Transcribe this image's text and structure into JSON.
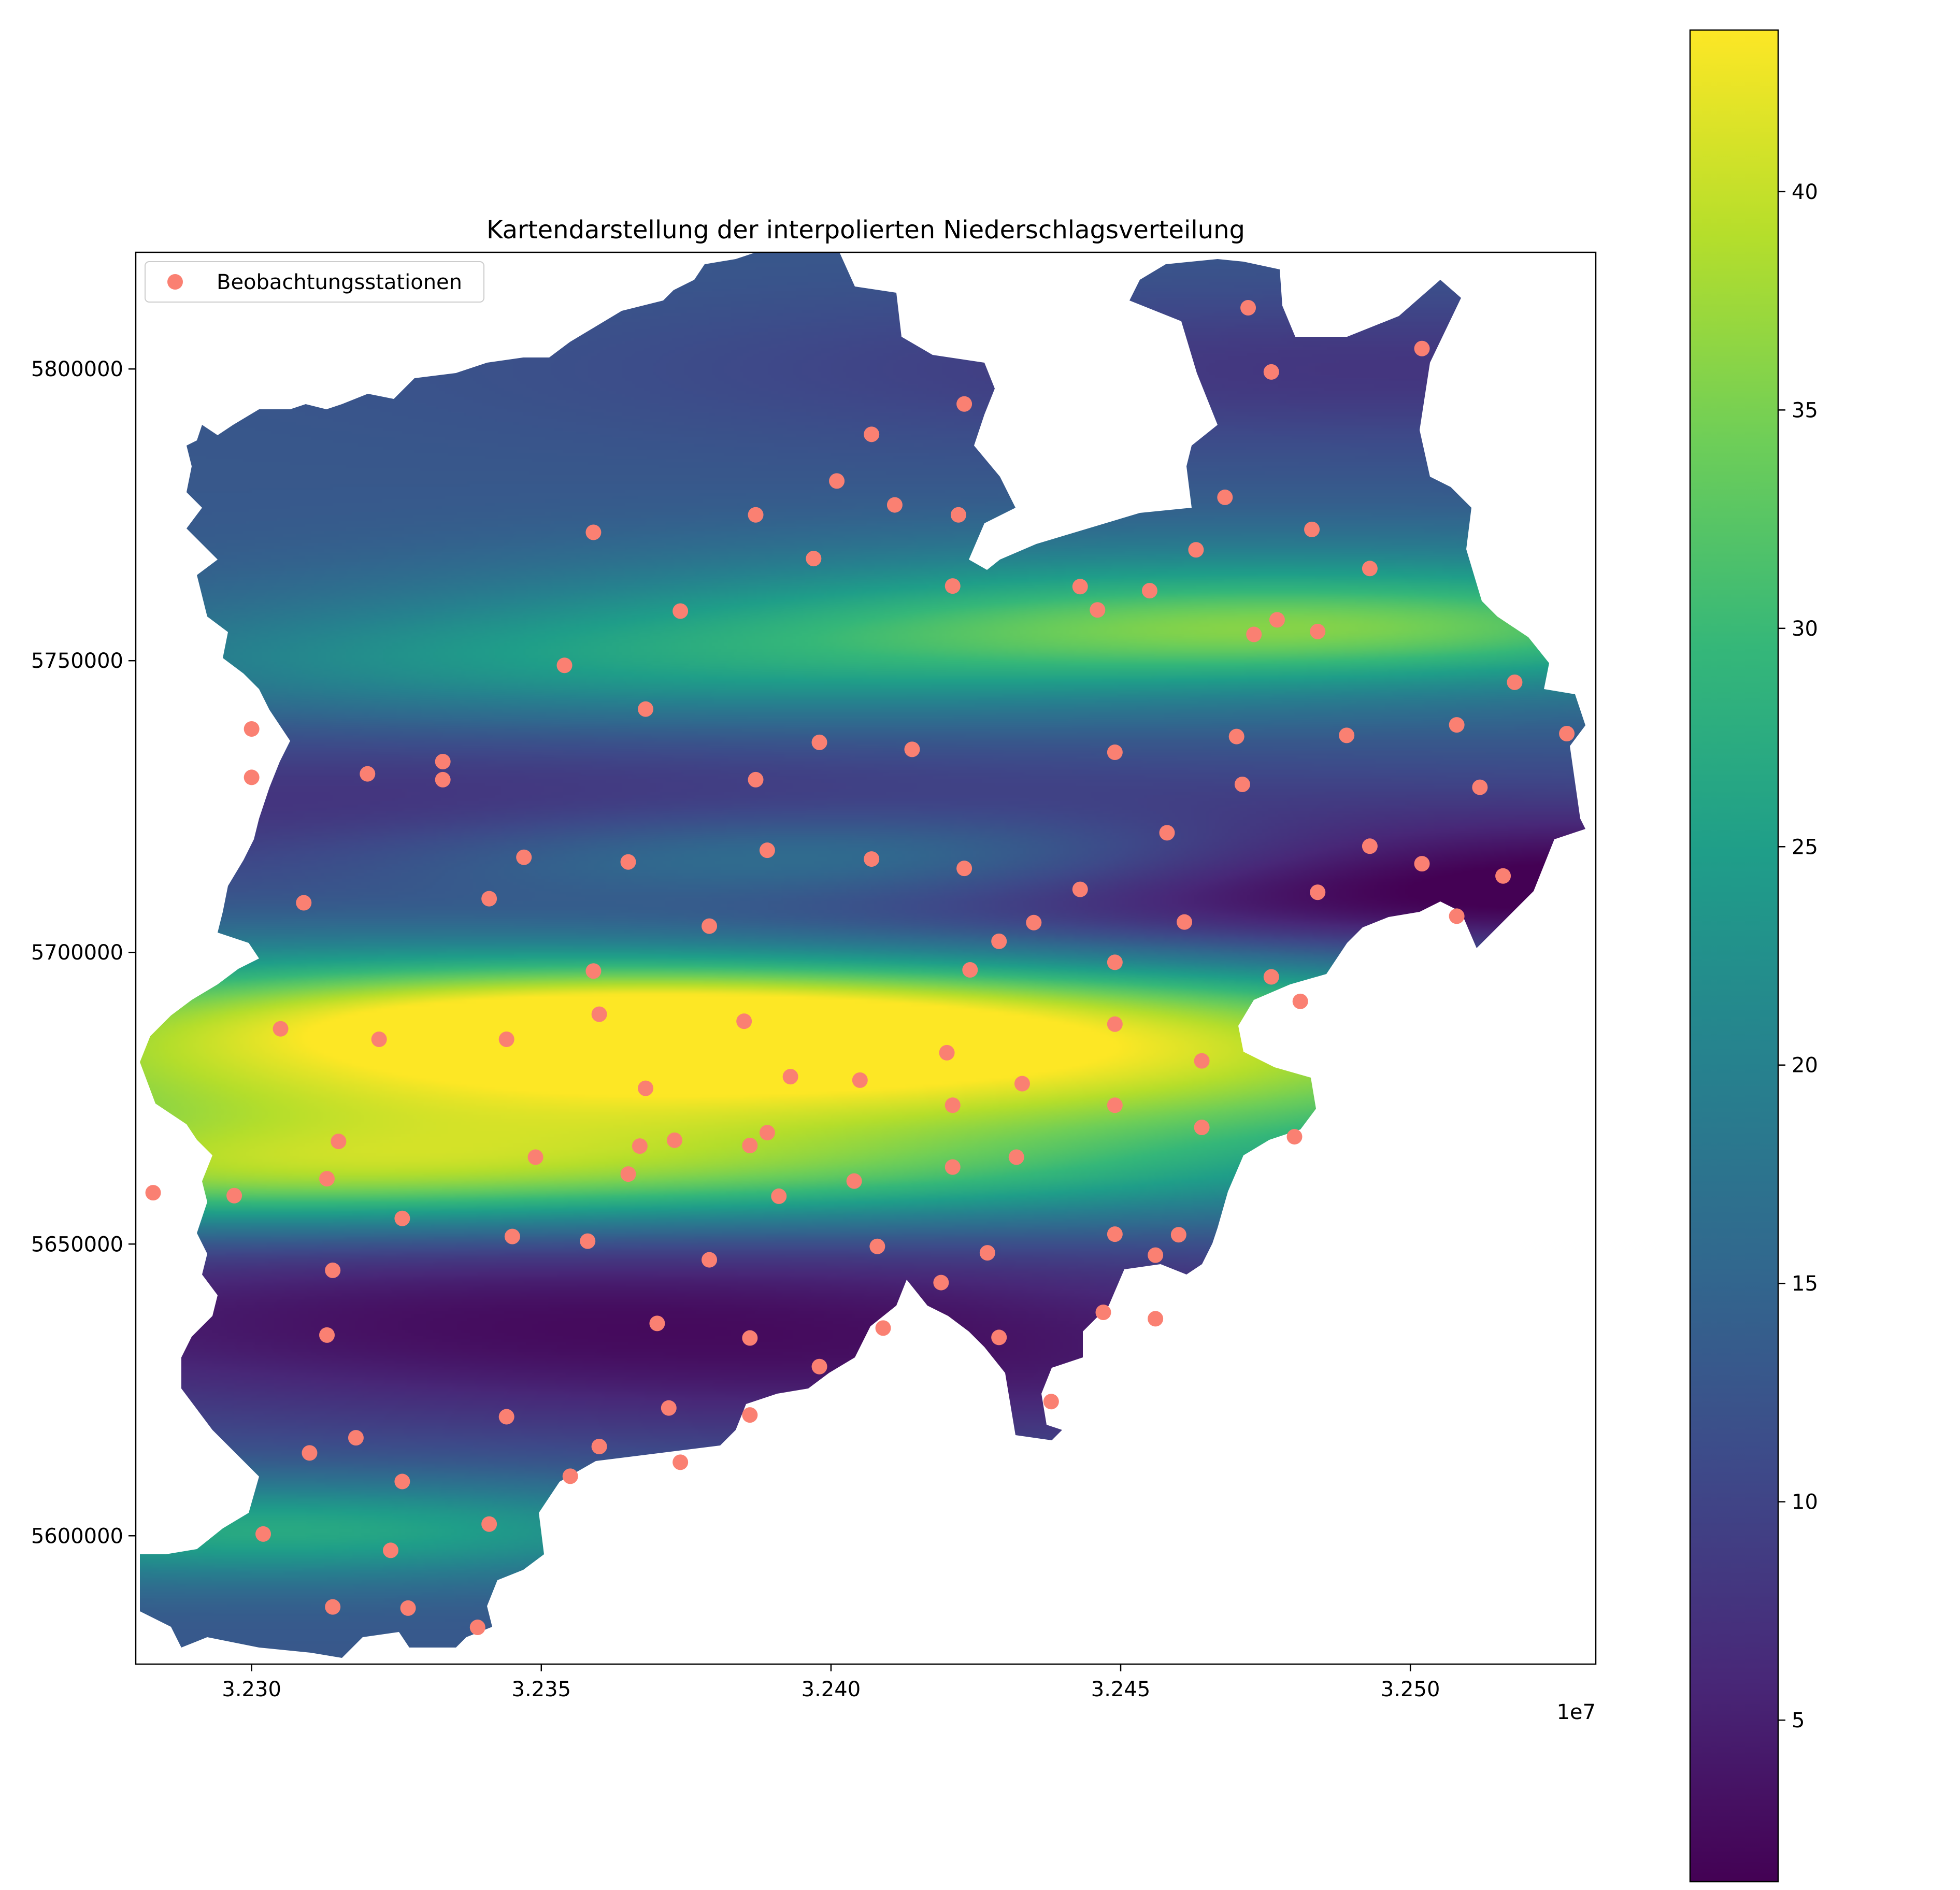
{
  "chart_data": {
    "type": "scatter",
    "title": "Kartendarstellung der interpolierten Niederschlagsverteilung",
    "x_ticks": [
      "3.230",
      "3.235",
      "3.240",
      "3.245",
      "3.250"
    ],
    "x_tick_values": [
      3230000,
      3235000,
      3240000,
      3245000,
      3250000
    ],
    "x_offset_label": "1e7",
    "y_ticks": [
      "5600000",
      "5650000",
      "5700000",
      "5750000",
      "5800000"
    ],
    "y_tick_values": [
      5600000,
      5650000,
      5700000,
      5750000,
      5800000
    ],
    "xlim": [
      3228000,
      3253200
    ],
    "ylim": [
      5578000,
      5820000
    ],
    "colorbar": {
      "colormap": "viridis",
      "range": [
        1.3,
        43.7
      ],
      "ticks": [
        "5",
        "10",
        "15",
        "20",
        "25",
        "30",
        "35",
        "40"
      ],
      "tick_values": [
        5,
        10,
        15,
        20,
        25,
        30,
        35,
        40
      ]
    },
    "legend": {
      "label": "Beobachtungsstationen",
      "location": "upper-left",
      "marker_color": "#fa8072"
    },
    "stations": [
      [
        3247200,
        5810500
      ],
      [
        3247600,
        5799500
      ],
      [
        3250200,
        5803500
      ],
      [
        3242300,
        5794000
      ],
      [
        3240700,
        5788800
      ],
      [
        3240100,
        5780800
      ],
      [
        3241100,
        5776700
      ],
      [
        3242200,
        5775000
      ],
      [
        3238700,
        5775000
      ],
      [
        3235900,
        5772000
      ],
      [
        3239700,
        5767500
      ],
      [
        3246800,
        5778000
      ],
      [
        3248300,
        5772500
      ],
      [
        3246300,
        5769000
      ],
      [
        3249300,
        5765800
      ],
      [
        3242100,
        5762800
      ],
      [
        3244300,
        5762700
      ],
      [
        3244600,
        5758700
      ],
      [
        3245500,
        5762000
      ],
      [
        3247700,
        5757000
      ],
      [
        3247300,
        5754500
      ],
      [
        3248400,
        5755000
      ],
      [
        3237400,
        5758500
      ],
      [
        3235400,
        5749200
      ],
      [
        3236800,
        5741700
      ],
      [
        3230000,
        5738300
      ],
      [
        3230000,
        5730000
      ],
      [
        3232000,
        5730600
      ],
      [
        3233300,
        5732700
      ],
      [
        3233300,
        5729600
      ],
      [
        3239800,
        5736000
      ],
      [
        3241400,
        5734800
      ],
      [
        3238700,
        5729600
      ],
      [
        3244900,
        5734300
      ],
      [
        3247000,
        5737000
      ],
      [
        3248900,
        5737200
      ],
      [
        3250800,
        5739000
      ],
      [
        3251800,
        5746300
      ],
      [
        3252700,
        5737500
      ],
      [
        3247100,
        5728800
      ],
      [
        3251200,
        5728300
      ],
      [
        3245800,
        5720500
      ],
      [
        3249300,
        5718200
      ],
      [
        3250200,
        5715200
      ],
      [
        3251600,
        5713100
      ],
      [
        3250800,
        5706200
      ],
      [
        3248400,
        5710300
      ],
      [
        3246100,
        5705200
      ],
      [
        3244300,
        5710800
      ],
      [
        3242300,
        5714400
      ],
      [
        3240700,
        5716000
      ],
      [
        3238900,
        5717500
      ],
      [
        3236500,
        5715500
      ],
      [
        3234700,
        5716300
      ],
      [
        3234100,
        5709200
      ],
      [
        3230900,
        5708500
      ],
      [
        3237900,
        5704500
      ],
      [
        3243500,
        5705100
      ],
      [
        3242900,
        5701900
      ],
      [
        3242400,
        5697000
      ],
      [
        3244900,
        5698300
      ],
      [
        3247600,
        5695800
      ],
      [
        3248100,
        5691600
      ],
      [
        3235900,
        5696800
      ],
      [
        3236000,
        5689400
      ],
      [
        3238500,
        5688200
      ],
      [
        3230500,
        5686900
      ],
      [
        3232200,
        5685100
      ],
      [
        3234400,
        5685100
      ],
      [
        3244900,
        5687700
      ],
      [
        3242000,
        5682800
      ],
      [
        3246400,
        5681400
      ],
      [
        3239300,
        5678700
      ],
      [
        3240500,
        5678100
      ],
      [
        3243300,
        5677500
      ],
      [
        3236800,
        5676700
      ],
      [
        3242100,
        5673800
      ],
      [
        3244900,
        5673800
      ],
      [
        3246400,
        5670000
      ],
      [
        3248000,
        5668400
      ],
      [
        3231500,
        5667600
      ],
      [
        3236700,
        5666800
      ],
      [
        3237300,
        5667800
      ],
      [
        3238600,
        5666900
      ],
      [
        3238900,
        5669100
      ],
      [
        3234900,
        5664900
      ],
      [
        3243200,
        5664900
      ],
      [
        3242100,
        5663200
      ],
      [
        3236500,
        5662000
      ],
      [
        3240400,
        5660800
      ],
      [
        3231300,
        5661200
      ],
      [
        3228300,
        5658800
      ],
      [
        3229700,
        5658300
      ],
      [
        3239100,
        5658200
      ],
      [
        3232600,
        5654400
      ],
      [
        3234500,
        5651300
      ],
      [
        3235800,
        5650500
      ],
      [
        3244900,
        5651700
      ],
      [
        3246000,
        5651600
      ],
      [
        3240800,
        5649600
      ],
      [
        3242700,
        5648500
      ],
      [
        3245600,
        5648100
      ],
      [
        3237900,
        5647300
      ],
      [
        3231400,
        5645500
      ],
      [
        3241900,
        5643400
      ],
      [
        3244700,
        5638300
      ],
      [
        3245600,
        5637200
      ],
      [
        3237000,
        5636400
      ],
      [
        3240900,
        5635600
      ],
      [
        3231300,
        5634400
      ],
      [
        3238600,
        5633900
      ],
      [
        3242900,
        5634000
      ],
      [
        3239800,
        5629000
      ],
      [
        3243800,
        5623000
      ],
      [
        3237200,
        5621900
      ],
      [
        3238600,
        5620700
      ],
      [
        3234400,
        5620400
      ],
      [
        3231800,
        5616800
      ],
      [
        3231000,
        5614200
      ],
      [
        3236000,
        5615300
      ],
      [
        3237400,
        5612600
      ],
      [
        3235500,
        5610200
      ],
      [
        3232600,
        5609300
      ],
      [
        3234100,
        5602000
      ],
      [
        3230200,
        5600300
      ],
      [
        3232400,
        5597500
      ],
      [
        3231400,
        5587800
      ],
      [
        3232700,
        5587600
      ],
      [
        3233900,
        5584300
      ]
    ],
    "field_centers": [
      [
        3237800,
        5681000,
        30,
        13000
      ],
      [
        3236200,
        5690000,
        8,
        5000
      ],
      [
        3240600,
        5716000,
        12,
        6000
      ],
      [
        3241500,
        5690000,
        8,
        9000
      ],
      [
        3240200,
        5661000,
        8,
        6000
      ],
      [
        3235800,
        5749000,
        8,
        7000
      ],
      [
        3247800,
        5757000,
        16,
        9000
      ],
      [
        3248400,
        5755000,
        6,
        5000
      ],
      [
        3230300,
        5601000,
        14,
        6000
      ],
      [
        3228500,
        5660000,
        12,
        6000
      ],
      [
        3231000,
        5666000,
        6,
        6000
      ],
      [
        3249500,
        5708000,
        -10,
        12000
      ],
      [
        3251500,
        5712000,
        -6,
        8000
      ],
      [
        3233000,
        5637000,
        -7,
        12000
      ],
      [
        3231000,
        5725000,
        -5,
        10000
      ],
      [
        3250000,
        5800000,
        -5,
        9000
      ],
      [
        3244500,
        5625000,
        -4,
        9000
      ],
      [
        3239000,
        5640000,
        -3,
        10000
      ]
    ],
    "field_base": 13
  }
}
